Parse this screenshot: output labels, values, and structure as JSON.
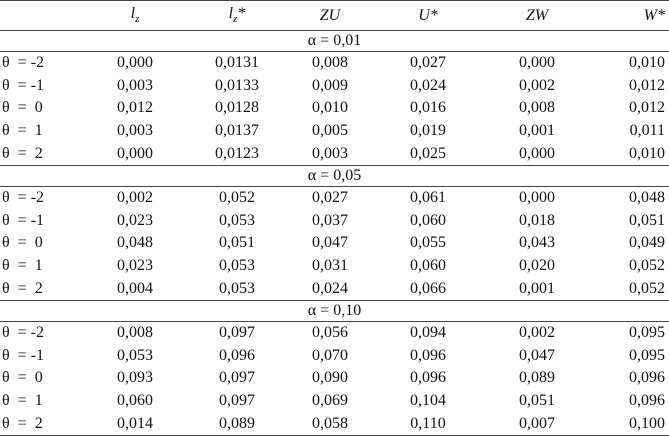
{
  "table": {
    "header": [
      {
        "text": "l",
        "sub": "z"
      },
      {
        "text": "l",
        "sub": "z",
        "suffix": "*"
      },
      {
        "text": "ZU"
      },
      {
        "text": "U*"
      },
      {
        "text": "ZW"
      },
      {
        "text": "W*"
      }
    ],
    "sections": [
      {
        "label": "α = 0,01",
        "rows": [
          [
            "θ  = -2",
            "0,000",
            "0,0131",
            "0,008",
            "0,027",
            "0,000",
            "0,010"
          ],
          [
            "θ  = -1",
            "0,003",
            "0,0133",
            "0,009",
            "0,024",
            "0,002",
            "0,012"
          ],
          [
            "θ  =  0",
            "0,012",
            "0,0128",
            "0,010",
            "0,016",
            "0,008",
            "0,012"
          ],
          [
            "θ  =  1",
            "0,003",
            "0,0137",
            "0,005",
            "0,019",
            "0,001",
            "0,011"
          ],
          [
            "θ  =  2",
            "0,000",
            "0,0123",
            "0,003",
            "0,025",
            "0,000",
            "0,010"
          ]
        ]
      },
      {
        "label": "α = 0,05",
        "rows": [
          [
            "θ  = -2",
            "0,002",
            "0,052",
            "0,027",
            "0,061",
            "0,000",
            "0,048"
          ],
          [
            "θ  = -1",
            "0,023",
            "0,053",
            "0,037",
            "0,060",
            "0,018",
            "0,051"
          ],
          [
            "θ  =  0",
            "0,048",
            "0,051",
            "0,047",
            "0,055",
            "0,043",
            "0,049"
          ],
          [
            "θ  =  1",
            "0,023",
            "0,053",
            "0,031",
            "0,060",
            "0,020",
            "0,052"
          ],
          [
            "θ  =  2",
            "0,004",
            "0,053",
            "0,024",
            "0,066",
            "0,001",
            "0,052"
          ]
        ]
      },
      {
        "label": "α = 0,10",
        "rows": [
          [
            "θ  = -2",
            "0,008",
            "0,097",
            "0,056",
            "0,094",
            "0,002",
            "0,095"
          ],
          [
            "θ  = -1",
            "0,053",
            "0,096",
            "0,070",
            "0,096",
            "0,047",
            "0,095"
          ],
          [
            "θ  =  0",
            "0,093",
            "0,097",
            "0,090",
            "0,096",
            "0,089",
            "0,096"
          ],
          [
            "θ  =  1",
            "0,060",
            "0,097",
            "0,069",
            "0,104",
            "0,051",
            "0,096"
          ],
          [
            "θ  =  2",
            "0,014",
            "0,089",
            "0,058",
            "0,110",
            "0,007",
            "0,100"
          ]
        ]
      }
    ]
  }
}
